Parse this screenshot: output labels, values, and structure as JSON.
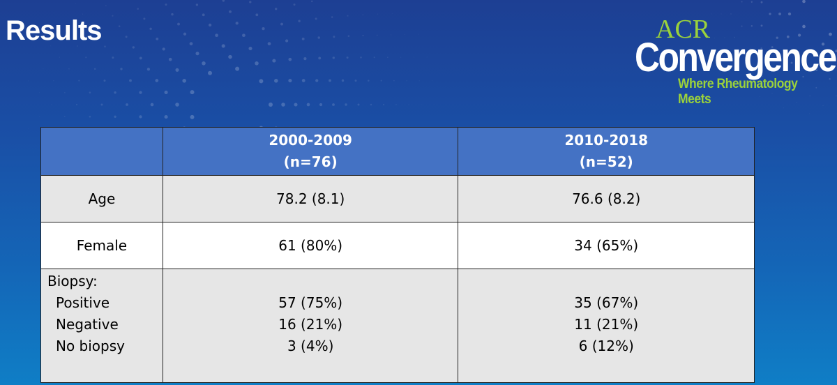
{
  "slide": {
    "title": "Results"
  },
  "logo": {
    "line1": "ACR",
    "line2": "Convergence",
    "tagline": "Where Rheumatology Meets",
    "accent_color": "#9bd23b"
  },
  "table": {
    "header_color": "#4472c4",
    "headers": [
      {
        "period": "",
        "n": ""
      },
      {
        "period": "2000-2009",
        "n": "(n=76)"
      },
      {
        "period": "2010-2018",
        "n": "(n=52)"
      }
    ],
    "age": {
      "label": "Age",
      "values": [
        "78.2 (8.1)",
        "76.6 (8.2)"
      ]
    },
    "female": {
      "label": "Female",
      "values": [
        "61 (80%)",
        "34 (65%)"
      ]
    },
    "biopsy": {
      "label": "Biopsy:",
      "sub_labels": [
        "Positive",
        "Negative",
        "No biopsy"
      ],
      "col1": [
        "57 (75%)",
        "16 (21%)",
        "3 (4%)"
      ],
      "col2": [
        "35 (67%)",
        "11 (21%)",
        "6 (12%)"
      ]
    }
  }
}
